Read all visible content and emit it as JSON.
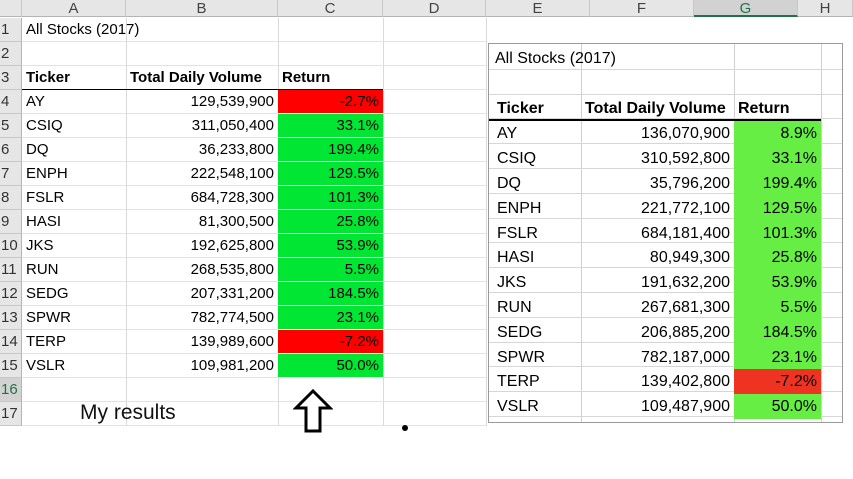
{
  "left_sheet": {
    "columns": [
      "A",
      "B",
      "C",
      "D",
      "E",
      "F",
      "G",
      "H"
    ],
    "row_numbers": [
      "1",
      "2",
      "3",
      "4",
      "5",
      "6",
      "7",
      "8",
      "9",
      "10",
      "11",
      "12",
      "13",
      "14",
      "15",
      "16",
      "17"
    ],
    "title": "All Stocks (2017)",
    "headers": {
      "ticker": "Ticker",
      "volume": "Total Daily Volume",
      "return": "Return"
    },
    "rows": [
      {
        "ticker": "AY",
        "volume": "129,539,900",
        "return": "-2.7%",
        "status": "negative"
      },
      {
        "ticker": "CSIQ",
        "volume": "311,050,400",
        "return": "33.1%",
        "status": "positive"
      },
      {
        "ticker": "DQ",
        "volume": "36,233,800",
        "return": "199.4%",
        "status": "positive"
      },
      {
        "ticker": "ENPH",
        "volume": "222,548,100",
        "return": "129.5%",
        "status": "positive"
      },
      {
        "ticker": "FSLR",
        "volume": "684,728,300",
        "return": "101.3%",
        "status": "positive"
      },
      {
        "ticker": "HASI",
        "volume": "81,300,500",
        "return": "25.8%",
        "status": "positive"
      },
      {
        "ticker": "JKS",
        "volume": "192,625,800",
        "return": "53.9%",
        "status": "positive"
      },
      {
        "ticker": "RUN",
        "volume": "268,535,800",
        "return": "5.5%",
        "status": "positive"
      },
      {
        "ticker": "SEDG",
        "volume": "207,331,200",
        "return": "184.5%",
        "status": "positive"
      },
      {
        "ticker": "SPWR",
        "volume": "782,774,500",
        "return": "23.1%",
        "status": "positive"
      },
      {
        "ticker": "TERP",
        "volume": "139,989,600",
        "return": "-7.2%",
        "status": "negative"
      },
      {
        "ticker": "VSLR",
        "volume": "109,981,200",
        "return": "50.0%",
        "status": "positive"
      }
    ],
    "annotation": "My results"
  },
  "right_table": {
    "title": "All Stocks (2017)",
    "headers": {
      "ticker": "Ticker",
      "volume": "Total Daily Volume",
      "return": "Return"
    },
    "rows": [
      {
        "ticker": "AY",
        "volume": "136,070,900",
        "return": "8.9%",
        "status": "positive"
      },
      {
        "ticker": "CSIQ",
        "volume": "310,592,800",
        "return": "33.1%",
        "status": "positive"
      },
      {
        "ticker": "DQ",
        "volume": "35,796,200",
        "return": "199.4%",
        "status": "positive"
      },
      {
        "ticker": "ENPH",
        "volume": "221,772,100",
        "return": "129.5%",
        "status": "positive"
      },
      {
        "ticker": "FSLR",
        "volume": "684,181,400",
        "return": "101.3%",
        "status": "positive"
      },
      {
        "ticker": "HASI",
        "volume": "80,949,300",
        "return": "25.8%",
        "status": "positive"
      },
      {
        "ticker": "JKS",
        "volume": "191,632,200",
        "return": "53.9%",
        "status": "positive"
      },
      {
        "ticker": "RUN",
        "volume": "267,681,300",
        "return": "5.5%",
        "status": "positive"
      },
      {
        "ticker": "SEDG",
        "volume": "206,885,200",
        "return": "184.5%",
        "status": "positive"
      },
      {
        "ticker": "SPWR",
        "volume": "782,187,000",
        "return": "23.1%",
        "status": "positive"
      },
      {
        "ticker": "TERP",
        "volume": "139,402,800",
        "return": "-7.2%",
        "status": "negative"
      },
      {
        "ticker": "VSLR",
        "volume": "109,487,900",
        "return": "50.0%",
        "status": "positive"
      }
    ]
  },
  "colors": {
    "positive": "#00e633",
    "negative": "#ff0000",
    "right_positive": "#66ee44",
    "right_negative": "#ee3322",
    "selected_header": "#217346"
  },
  "icons": {
    "arrow": "up-arrow-icon"
  }
}
